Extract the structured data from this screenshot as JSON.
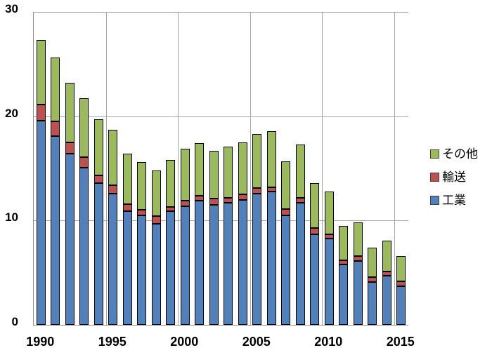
{
  "chart_data": {
    "type": "bar",
    "stacked": true,
    "title": "",
    "xlabel": "",
    "ylabel": "",
    "categories": [
      1990,
      1991,
      1992,
      1993,
      1994,
      1995,
      1996,
      1997,
      1998,
      1999,
      2000,
      2001,
      2002,
      2003,
      2004,
      2005,
      2006,
      2007,
      2008,
      2009,
      2010,
      2011,
      2012,
      2013,
      2014,
      2015
    ],
    "series": [
      {
        "name": "工業",
        "key": "industry",
        "color": "#4F81BD",
        "values": [
          19.6,
          18.1,
          16.4,
          15.1,
          13.6,
          12.6,
          10.9,
          10.5,
          9.7,
          10.9,
          11.4,
          11.9,
          11.5,
          11.7,
          12.0,
          12.6,
          12.8,
          10.5,
          11.7,
          8.7,
          8.3,
          5.8,
          6.1,
          4.1,
          4.7,
          3.7
        ]
      },
      {
        "name": "輸送",
        "key": "transport",
        "color": "#C0504D",
        "values": [
          1.5,
          1.4,
          1.1,
          1.0,
          0.7,
          0.8,
          0.7,
          0.5,
          0.7,
          0.4,
          0.5,
          0.5,
          0.6,
          0.5,
          0.5,
          0.5,
          0.4,
          0.6,
          0.5,
          0.6,
          0.4,
          0.4,
          0.5,
          0.5,
          0.4,
          0.5
        ]
      },
      {
        "name": "その他",
        "key": "other",
        "color": "#9BBB59",
        "values": [
          6.2,
          6.1,
          5.7,
          5.6,
          5.4,
          5.3,
          4.8,
          4.6,
          4.4,
          4.5,
          5.0,
          5.0,
          4.6,
          4.9,
          5.0,
          5.2,
          5.4,
          4.6,
          5.1,
          4.3,
          4.1,
          3.3,
          3.2,
          2.8,
          3.0,
          2.4
        ]
      }
    ],
    "ylim": [
      0,
      30
    ],
    "yticks": [
      0,
      10,
      20,
      30
    ],
    "ytick_labels": [
      "0",
      "10",
      "20",
      "30"
    ],
    "xtick_positions": [
      0,
      5,
      10,
      15,
      20,
      25
    ],
    "xtick_labels": [
      "1990",
      "1995",
      "2000",
      "2005",
      "2010",
      "2015"
    ],
    "grid": true,
    "legend_position": "right"
  },
  "legend": {
    "items": [
      {
        "label": "その他",
        "color": "#9BBB59"
      },
      {
        "label": "輸送",
        "color": "#C0504D"
      },
      {
        "label": "工業",
        "color": "#4F81BD"
      }
    ]
  },
  "colors": {
    "gridline": "#A6A6A6",
    "axis_line": "#8C8C8C",
    "bar_border": "#000000",
    "background": "#FFFFFF",
    "text": "#000000"
  }
}
